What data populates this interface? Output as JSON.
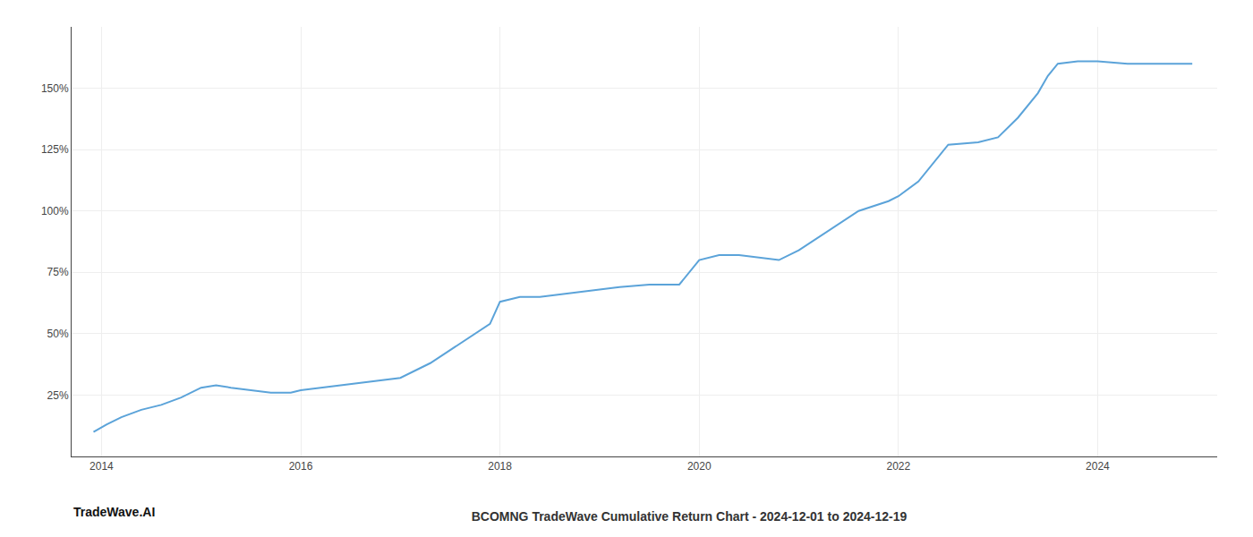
{
  "chart_data": {
    "type": "line",
    "title": "BCOMNG TradeWave Cumulative Return Chart - 2024-12-01 to 2024-12-19",
    "annotations": [
      "TradeWave.AI"
    ],
    "x": [
      2013.92,
      2014.05,
      2014.2,
      2014.4,
      2014.6,
      2014.8,
      2015.0,
      2015.15,
      2015.3,
      2015.5,
      2015.7,
      2015.9,
      2016.0,
      2016.2,
      2016.4,
      2016.6,
      2016.8,
      2017.0,
      2017.3,
      2017.6,
      2017.9,
      2018.0,
      2018.2,
      2018.4,
      2018.6,
      2018.8,
      2019.0,
      2019.2,
      2019.5,
      2019.8,
      2020.0,
      2020.2,
      2020.4,
      2020.6,
      2020.8,
      2021.0,
      2021.3,
      2021.6,
      2021.9,
      2022.0,
      2022.2,
      2022.5,
      2022.8,
      2023.0,
      2023.2,
      2023.4,
      2023.5,
      2023.6,
      2023.8,
      2024.0,
      2024.3,
      2024.6,
      2024.95
    ],
    "values": [
      10,
      13,
      16,
      19,
      21,
      24,
      28,
      29,
      28,
      27,
      26,
      26,
      27,
      28,
      29,
      30,
      31,
      32,
      38,
      46,
      54,
      63,
      65,
      65,
      66,
      67,
      68,
      69,
      70,
      70,
      80,
      82,
      82,
      81,
      80,
      84,
      92,
      100,
      104,
      106,
      112,
      127,
      128,
      130,
      138,
      148,
      155,
      160,
      161,
      161,
      160,
      160,
      160
    ],
    "color": "#5ba3d9",
    "xlim": [
      2013.7,
      2025.2
    ],
    "xticks": [
      2014,
      2016,
      2018,
      2020,
      2022,
      2024
    ],
    "ylim": [
      0,
      175
    ],
    "yticks": [
      {
        "value": 25,
        "label": "25%"
      },
      {
        "value": 50,
        "label": "50%"
      },
      {
        "value": 75,
        "label": "75%"
      },
      {
        "value": 100,
        "label": "100%"
      },
      {
        "value": 125,
        "label": "125%"
      },
      {
        "value": 150,
        "label": "150%"
      }
    ],
    "grid": true
  }
}
